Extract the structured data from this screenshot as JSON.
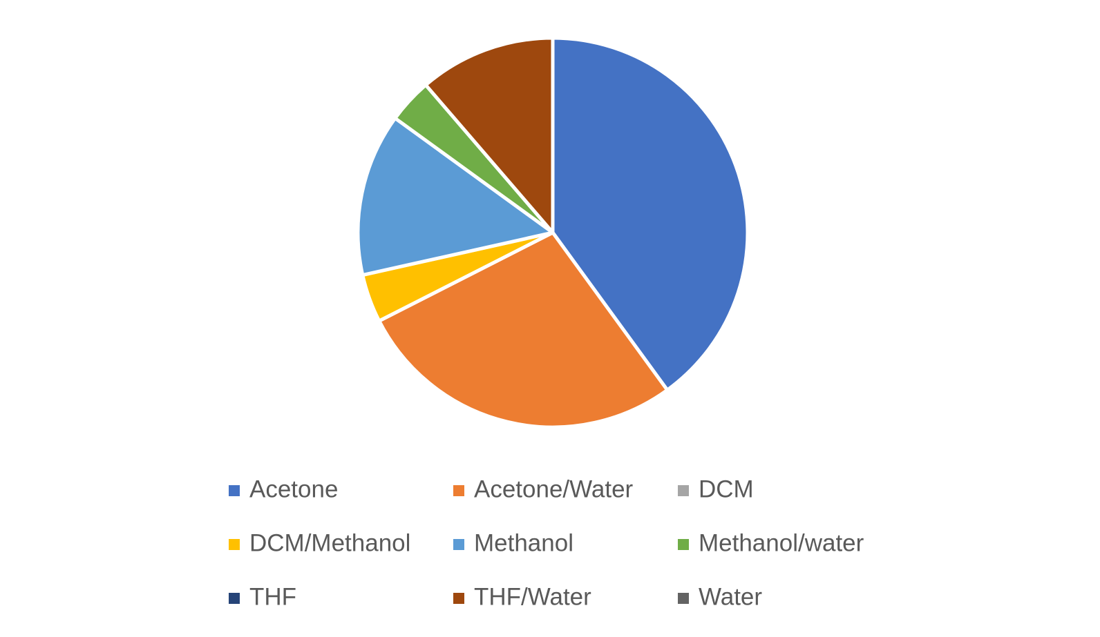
{
  "chart_data": {
    "type": "pie",
    "categories": [
      "Acetone",
      "Acetone/Water",
      "DCM",
      "DCM/Methanol",
      "Methanol",
      "Methanol/water",
      "THF",
      "THF/Water",
      "Water"
    ],
    "values": [
      40,
      27.5,
      0,
      4,
      13.5,
      3.7,
      0,
      11.3,
      0
    ],
    "colors": [
      "#4472c4",
      "#ed7d31",
      "#a5a5a5",
      "#ffc000",
      "#5b9bd5",
      "#70ad47",
      "#264478",
      "#9e480e",
      "#636363"
    ],
    "legend": "bottom"
  }
}
